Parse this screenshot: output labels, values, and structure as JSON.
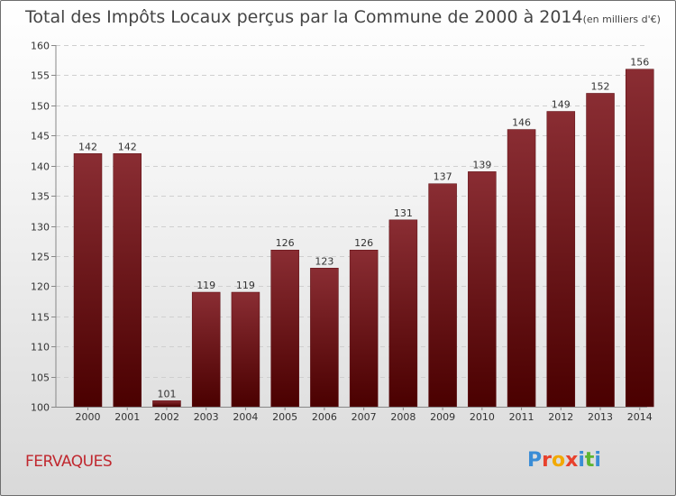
{
  "chart_data": {
    "type": "bar",
    "title": "Total des Impôts Locaux perçus par la Commune de 2000 à 2014",
    "unit_note": "(en milliers d'€)",
    "categories": [
      "2000",
      "2001",
      "2002",
      "2003",
      "2004",
      "2005",
      "2006",
      "2007",
      "2008",
      "2009",
      "2010",
      "2011",
      "2012",
      "2013",
      "2014"
    ],
    "values": [
      142,
      142,
      101,
      119,
      119,
      126,
      123,
      126,
      131,
      137,
      139,
      146,
      149,
      152,
      156
    ],
    "value_labels": [
      "142",
      "142",
      "101",
      "119",
      "119",
      "126",
      "123",
      "126",
      "131",
      "137",
      "139",
      "146",
      "149",
      "152",
      "156"
    ],
    "ylim": [
      100,
      160
    ],
    "yticks": [
      "100",
      "105",
      "110",
      "115",
      "120",
      "125",
      "130",
      "135",
      "140",
      "145",
      "150",
      "155",
      "160"
    ],
    "xlabel": "",
    "ylabel": "",
    "grid": true,
    "bar_color": "#7a1a1f",
    "bar_color_dark": "#4d0000"
  },
  "footer": {
    "commune": "FERVAQUES",
    "logo": "Proxiti",
    "logo_letters": [
      "P",
      "r",
      "o",
      "x",
      "i",
      "t",
      "i"
    ],
    "logo_colors": [
      "#3a8dd6",
      "#e8412c",
      "#f2a900",
      "#e8412c",
      "#3a8dd6",
      "#5cb531",
      "#3a8dd6"
    ]
  }
}
